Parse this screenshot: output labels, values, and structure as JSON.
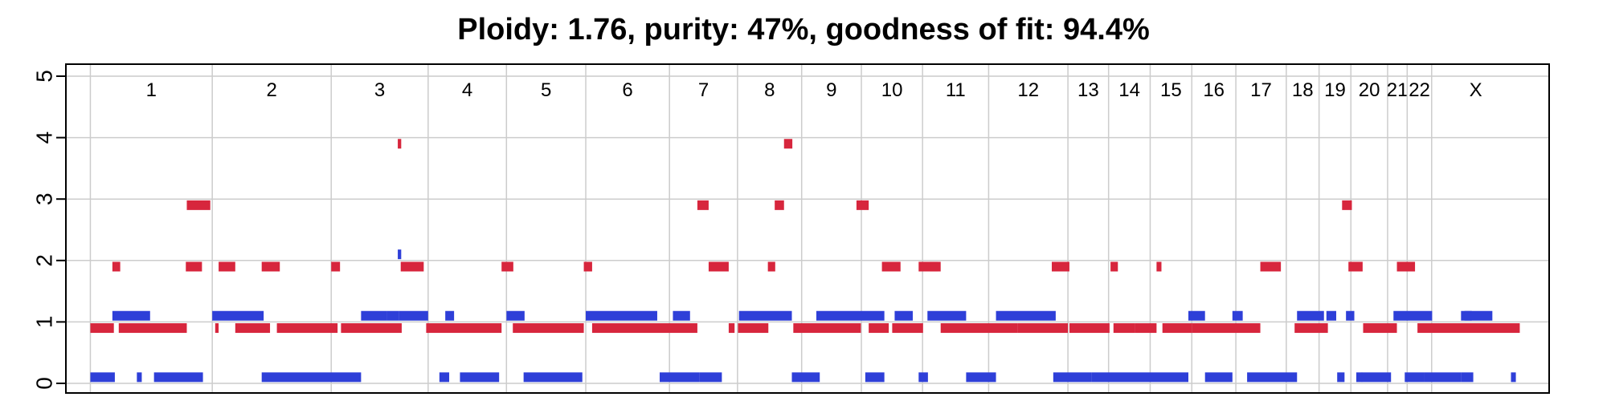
{
  "title": "Ploidy: 1.76, purity: 47%, goodness of fit: 94.4%",
  "colors": {
    "major": "#D7263D",
    "minor": "#2E3FD8",
    "grid": "#cccccc",
    "frame": "#000000"
  },
  "chart_data": {
    "type": "segments",
    "title": "Ploidy: 1.76, purity: 47%, goodness of fit: 94.4%",
    "xlabel": "",
    "ylabel": "",
    "ylim": [
      0,
      5
    ],
    "yticks": [
      0,
      1,
      2,
      3,
      4,
      5
    ],
    "grid": true,
    "legend": "none",
    "chromosomes": [
      {
        "name": "1",
        "start": 0,
        "end": 249
      },
      {
        "name": "2",
        "start": 249,
        "end": 492
      },
      {
        "name": "3",
        "start": 492,
        "end": 690
      },
      {
        "name": "4",
        "start": 690,
        "end": 850
      },
      {
        "name": "5",
        "start": 850,
        "end": 1012
      },
      {
        "name": "6",
        "start": 1012,
        "end": 1183
      },
      {
        "name": "7",
        "start": 1183,
        "end": 1322
      },
      {
        "name": "8",
        "start": 1322,
        "end": 1453
      },
      {
        "name": "9",
        "start": 1453,
        "end": 1575
      },
      {
        "name": "10",
        "start": 1575,
        "end": 1700
      },
      {
        "name": "11",
        "start": 1700,
        "end": 1835
      },
      {
        "name": "12",
        "start": 1835,
        "end": 1997
      },
      {
        "name": "13",
        "start": 1997,
        "end": 2080
      },
      {
        "name": "14",
        "start": 2080,
        "end": 2165
      },
      {
        "name": "15",
        "start": 2165,
        "end": 2250
      },
      {
        "name": "16",
        "start": 2250,
        "end": 2340
      },
      {
        "name": "17",
        "start": 2340,
        "end": 2443
      },
      {
        "name": "18",
        "start": 2443,
        "end": 2510
      },
      {
        "name": "19",
        "start": 2510,
        "end": 2575
      },
      {
        "name": "20",
        "start": 2575,
        "end": 2650
      },
      {
        "name": "21",
        "start": 2650,
        "end": 2690
      },
      {
        "name": "22",
        "start": 2690,
        "end": 2740
      },
      {
        "name": "X",
        "start": 2740,
        "end": 2920
      }
    ],
    "series": [
      {
        "role": "major",
        "segments": [
          [
            0,
            48,
            0.9
          ],
          [
            58,
            197,
            0.9
          ],
          [
            197,
            245,
            2.9
          ],
          [
            45,
            61,
            1.9
          ],
          [
            195,
            228,
            1.9
          ],
          [
            255,
            262,
            0.9
          ],
          [
            262,
            296,
            1.9
          ],
          [
            296,
            367,
            0.9
          ],
          [
            350,
            387,
            1.9
          ],
          [
            381,
            505,
            0.9
          ],
          [
            492,
            510,
            1.9
          ],
          [
            628,
            635,
            3.9
          ],
          [
            634,
            681,
            1.9
          ],
          [
            512,
            636,
            0.9
          ],
          [
            686,
            840,
            0.9
          ],
          [
            863,
            1008,
            0.9
          ],
          [
            840,
            864,
            1.9
          ],
          [
            1008,
            1025,
            1.9
          ],
          [
            1025,
            1240,
            0.9
          ],
          [
            1240,
            1263,
            2.9
          ],
          [
            1263,
            1304,
            1.9
          ],
          [
            1304,
            1316,
            0.9
          ],
          [
            1323,
            1385,
            0.9
          ],
          [
            1384,
            1399,
            1.9
          ],
          [
            1398,
            1417,
            2.9
          ],
          [
            1417,
            1434,
            3.9
          ],
          [
            1436,
            1574,
            0.9
          ],
          [
            1565,
            1590,
            2.9
          ],
          [
            1590,
            1631,
            0.9
          ],
          [
            1617,
            1655,
            1.9
          ],
          [
            1638,
            1701,
            0.9
          ],
          [
            1692,
            1731,
            1.9
          ],
          [
            1715,
            1737,
            1.9
          ],
          [
            1737,
            1894,
            0.9
          ],
          [
            1894,
            1997,
            0.9
          ],
          [
            1964,
            2000,
            1.9
          ],
          [
            2000,
            2082,
            0.9
          ],
          [
            2084,
            2099,
            1.9
          ],
          [
            2090,
            2134,
            0.9
          ],
          [
            2134,
            2178,
            0.9
          ],
          [
            2178,
            2188,
            1.9
          ],
          [
            2190,
            2250,
            0.9
          ],
          [
            2250,
            2390,
            0.9
          ],
          [
            2390,
            2432,
            1.9
          ],
          [
            2460,
            2528,
            0.9
          ],
          [
            2557,
            2577,
            2.9
          ],
          [
            2570,
            2599,
            1.9
          ],
          [
            2600,
            2669,
            0.9
          ],
          [
            2669,
            2706,
            1.9
          ],
          [
            2711,
            2920,
            0.9
          ]
        ]
      },
      {
        "role": "minor",
        "segments": [
          [
            0,
            50,
            0.1
          ],
          [
            95,
            105,
            0.1
          ],
          [
            130,
            230,
            0.1
          ],
          [
            45,
            122,
            1.1
          ],
          [
            249,
            354,
            1.1
          ],
          [
            350,
            553,
            0.1
          ],
          [
            553,
            605,
            1.1
          ],
          [
            605,
            631,
            1.1
          ],
          [
            628,
            635,
            2.1
          ],
          [
            631,
            690,
            1.1
          ],
          [
            725,
            743,
            1.1
          ],
          [
            713,
            733,
            0.1
          ],
          [
            755,
            835,
            0.1
          ],
          [
            850,
            887,
            1.1
          ],
          [
            885,
            1005,
            0.1
          ],
          [
            1012,
            1158,
            1.1
          ],
          [
            1163,
            1244,
            0.1
          ],
          [
            1190,
            1225,
            1.1
          ],
          [
            1244,
            1290,
            0.1
          ],
          [
            1325,
            1433,
            1.1
          ],
          [
            1433,
            1490,
            0.1
          ],
          [
            1483,
            1622,
            1.1
          ],
          [
            1583,
            1622,
            0.1
          ],
          [
            1643,
            1680,
            1.1
          ],
          [
            1692,
            1711,
            0.1
          ],
          [
            1710,
            1789,
            1.1
          ],
          [
            1789,
            1850,
            0.1
          ],
          [
            1850,
            1972,
            1.1
          ],
          [
            1967,
            2045,
            0.1
          ],
          [
            2045,
            2243,
            0.1
          ],
          [
            2243,
            2277,
            1.1
          ],
          [
            2277,
            2333,
            0.1
          ],
          [
            2333,
            2354,
            1.1
          ],
          [
            2363,
            2465,
            0.1
          ],
          [
            2465,
            2520,
            1.1
          ],
          [
            2525,
            2545,
            1.1
          ],
          [
            2565,
            2582,
            1.1
          ],
          [
            2547,
            2562,
            0.1
          ],
          [
            2586,
            2598,
            0.1
          ],
          [
            2597,
            2657,
            0.1
          ],
          [
            2662,
            2741,
            1.1
          ],
          [
            2685,
            2724,
            0.1
          ],
          [
            2724,
            2800,
            0.1
          ],
          [
            2800,
            2825,
            0.1
          ],
          [
            2800,
            2822,
            1.1
          ],
          [
            2807,
            2864,
            1.1
          ],
          [
            2902,
            2912,
            0.1
          ]
        ]
      }
    ]
  }
}
